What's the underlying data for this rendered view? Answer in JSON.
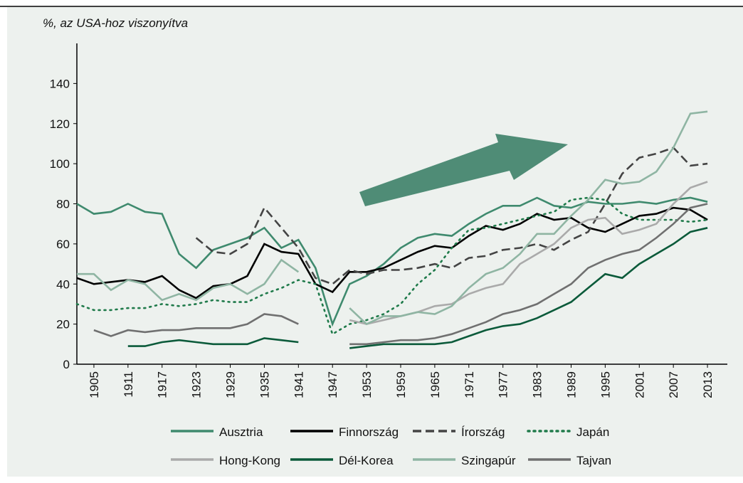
{
  "chart_data": {
    "type": "line",
    "y_label": "%, az USA-hoz viszonyítva",
    "x": [
      1902,
      1905,
      1908,
      1911,
      1914,
      1917,
      1920,
      1923,
      1926,
      1929,
      1932,
      1935,
      1938,
      1941,
      1944,
      1947,
      1950,
      1953,
      1956,
      1959,
      1962,
      1965,
      1968,
      1971,
      1974,
      1977,
      1980,
      1983,
      1986,
      1989,
      1992,
      1995,
      1998,
      2001,
      2004,
      2007,
      2010,
      2013
    ],
    "xlim": [
      1902,
      2016.5
    ],
    "xticks": [
      1905,
      1911,
      1917,
      1923,
      1929,
      1935,
      1941,
      1947,
      1953,
      1959,
      1965,
      1971,
      1977,
      1983,
      1989,
      1995,
      2001,
      2007,
      2013
    ],
    "ylim": [
      0,
      160
    ],
    "yticks": [
      0,
      20,
      40,
      60,
      80,
      100,
      120,
      140
    ],
    "series": [
      {
        "name": "Ausztria",
        "color": "#3f8a6e",
        "dash": "solid",
        "values": [
          80,
          75,
          76,
          80,
          76,
          75,
          55,
          48,
          57,
          60,
          63,
          68,
          58,
          62,
          48,
          20,
          40,
          44,
          50,
          58,
          63,
          65,
          64,
          70,
          75,
          79,
          79,
          83,
          79,
          78,
          81,
          80,
          80,
          81,
          80,
          82,
          83,
          81
        ]
      },
      {
        "name": "Finnország",
        "color": "#000000",
        "dash": "solid",
        "values": [
          43,
          40,
          41,
          42,
          41,
          44,
          37,
          33,
          39,
          40,
          44,
          60,
          56,
          55,
          40,
          36,
          46,
          46,
          48,
          52,
          56,
          59,
          58,
          64,
          69,
          67,
          70,
          75,
          72,
          73,
          68,
          66,
          70,
          74,
          75,
          78,
          77,
          72
        ]
      },
      {
        "name": "Írország",
        "color": "#444444",
        "dash": "dashed",
        "values": [
          null,
          null,
          null,
          null,
          null,
          null,
          null,
          63,
          56,
          55,
          60,
          78,
          68,
          58,
          43,
          40,
          47,
          45,
          47,
          47,
          48,
          50,
          48,
          53,
          54,
          57,
          58,
          60,
          57,
          62,
          66,
          80,
          95,
          103,
          105,
          108,
          99,
          100
        ]
      },
      {
        "name": "Japán",
        "color": "#1f7a4a",
        "dash": "dotted",
        "values": [
          30,
          27,
          27,
          28,
          28,
          30,
          29,
          30,
          32,
          31,
          31,
          35,
          38,
          42,
          40,
          15,
          20,
          22,
          25,
          30,
          40,
          47,
          58,
          67,
          68,
          70,
          72,
          74,
          76,
          82,
          83,
          82,
          75,
          72,
          72,
          72,
          71,
          72
        ]
      },
      {
        "name": "Hong-Kong",
        "color": "#aaaaaa",
        "dash": "solid",
        "values": [
          null,
          null,
          null,
          null,
          null,
          null,
          null,
          null,
          null,
          null,
          null,
          null,
          null,
          null,
          null,
          null,
          22,
          20,
          22,
          24,
          26,
          29,
          30,
          35,
          38,
          40,
          50,
          55,
          60,
          68,
          72,
          73,
          65,
          67,
          70,
          80,
          88,
          91
        ]
      },
      {
        "name": "Dél-Korea",
        "color": "#0b5a3a",
        "dash": "solid",
        "values": [
          null,
          null,
          null,
          9,
          9,
          11,
          12,
          11,
          10,
          10,
          10,
          13,
          12,
          11,
          null,
          null,
          8,
          9,
          10,
          10,
          10,
          10,
          11,
          14,
          17,
          19,
          20,
          23,
          27,
          31,
          38,
          45,
          43,
          50,
          55,
          60,
          66,
          68
        ]
      },
      {
        "name": "Szingapúr",
        "color": "#8fb5a3",
        "dash": "solid",
        "values": [
          45,
          45,
          37,
          42,
          40,
          32,
          35,
          32,
          38,
          40,
          35,
          40,
          52,
          46,
          null,
          null,
          28,
          20,
          24,
          24,
          26,
          25,
          29,
          38,
          45,
          48,
          55,
          65,
          65,
          74,
          82,
          92,
          90,
          91,
          96,
          108,
          125,
          126
        ]
      },
      {
        "name": "Tajvan",
        "color": "#707070",
        "dash": "solid",
        "values": [
          null,
          17,
          14,
          17,
          16,
          17,
          17,
          18,
          18,
          18,
          20,
          25,
          24,
          20,
          null,
          null,
          10,
          10,
          11,
          12,
          12,
          13,
          15,
          18,
          21,
          25,
          27,
          30,
          35,
          40,
          48,
          52,
          55,
          57,
          63,
          70,
          78,
          80
        ]
      }
    ]
  }
}
